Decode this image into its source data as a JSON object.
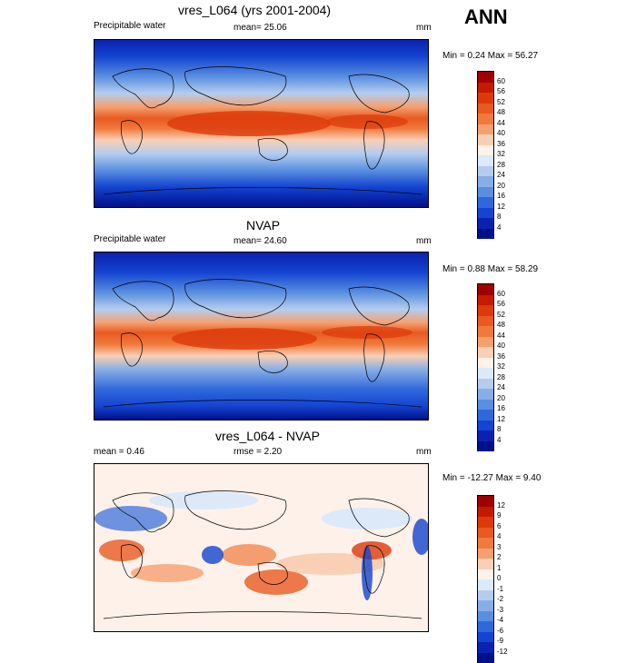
{
  "annotation": "ANN",
  "panels": [
    {
      "title": "vres_L064 (yrs 2001-2004)",
      "variable": "Precipitable water",
      "stat": "mean=  25.06",
      "units": "mm",
      "range": "Min =   0.24 Max =  56.27",
      "colorbar": {
        "levels": [
          "60",
          "56",
          "52",
          "48",
          "44",
          "40",
          "36",
          "32",
          "28",
          "24",
          "20",
          "16",
          "12",
          "8",
          "4"
        ],
        "colors": [
          "#9e0000",
          "#c41a00",
          "#dc3a0a",
          "#e85a20",
          "#f07a3c",
          "#f5a070",
          "#f9cfb6",
          "#fdf1ea",
          "#dce9f8",
          "#b4cdef",
          "#88aee6",
          "#5a8fe0",
          "#3068dc",
          "#1444d0",
          "#0a22b0",
          "#00108a"
        ]
      }
    },
    {
      "title": "NVAP",
      "variable": "Precipitable water",
      "stat": "mean=  24.60",
      "units": "mm",
      "range": "Min =   0.88 Max =  58.29",
      "colorbar": {
        "levels": [
          "60",
          "56",
          "52",
          "48",
          "44",
          "40",
          "36",
          "32",
          "28",
          "24",
          "20",
          "16",
          "12",
          "8",
          "4"
        ],
        "colors": [
          "#9e0000",
          "#c41a00",
          "#dc3a0a",
          "#e85a20",
          "#f07a3c",
          "#f5a070",
          "#f9cfb6",
          "#fdf1ea",
          "#dce9f8",
          "#b4cdef",
          "#88aee6",
          "#5a8fe0",
          "#3068dc",
          "#1444d0",
          "#0a22b0",
          "#00108a"
        ]
      }
    },
    {
      "title": "vres_L064 - NVAP",
      "stat_left": "mean =   0.46",
      "stat": "rmse =   2.20",
      "units": "mm",
      "range": "Min = -12.27 Max =   9.40",
      "colorbar": {
        "levels": [
          "12",
          "9",
          "6",
          "4",
          "3",
          "2",
          "1",
          "0",
          "-1",
          "-2",
          "-3",
          "-4",
          "-6",
          "-9",
          "-12"
        ],
        "colors": [
          "#9e0000",
          "#c41a00",
          "#dc3a0a",
          "#e85a20",
          "#f07a3c",
          "#f5a070",
          "#f9cfb6",
          "#fdf1ea",
          "#dce9f8",
          "#b4cdef",
          "#88aee6",
          "#5a8fe0",
          "#3068dc",
          "#1444d0",
          "#0a22b0",
          "#00108a"
        ]
      }
    }
  ]
}
